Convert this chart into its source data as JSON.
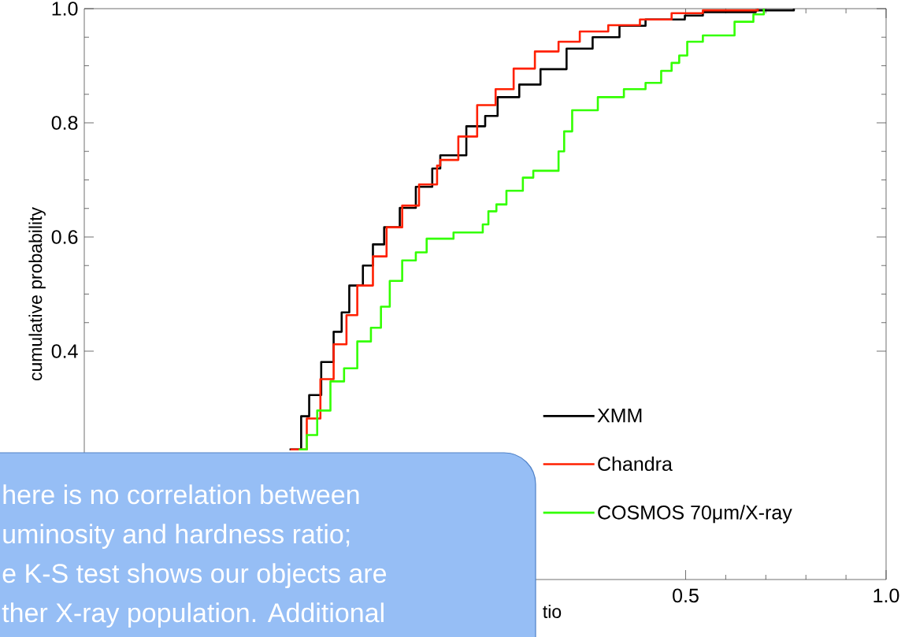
{
  "chart_data": {
    "type": "step",
    "xlabel": "tio",
    "ylabel": "cumulative probability",
    "xlim": [
      -1,
      1
    ],
    "ylim": [
      0,
      1
    ],
    "xticks": [
      {
        "value": 0.5,
        "label": "0.5"
      },
      {
        "value": 1,
        "label": "1.0"
      }
    ],
    "yticks": [
      {
        "value": 0.4,
        "label": "0.4"
      },
      {
        "value": 0.6,
        "label": "0.6"
      },
      {
        "value": 0.8,
        "label": "0.8"
      },
      {
        "value": 1,
        "label": "1.0"
      }
    ],
    "legend": "bottom right",
    "grid": false,
    "line_style": "solid",
    "marker": "none",
    "series": [
      {
        "name": "XMM",
        "color": "#000000",
        "x": [
          -0.488,
          -0.459,
          -0.439,
          -0.409,
          -0.378,
          -0.358,
          -0.339,
          -0.305,
          -0.28,
          -0.252,
          -0.213,
          -0.173,
          -0.132,
          -0.112,
          -0.047,
          0.0,
          0.031,
          0.085,
          0.138,
          0.203,
          0.268,
          0.335,
          0.4,
          0.498,
          0.543,
          0.675,
          0.77
        ],
        "values": [
          0.228,
          0.286,
          0.323,
          0.381,
          0.434,
          0.468,
          0.515,
          0.55,
          0.587,
          0.617,
          0.651,
          0.688,
          0.72,
          0.743,
          0.794,
          0.812,
          0.845,
          0.867,
          0.894,
          0.93,
          0.95,
          0.97,
          0.981,
          0.988,
          0.994,
          0.997,
          1.0
        ]
      },
      {
        "name": "Chandra",
        "color": "#ff2000",
        "x": [
          -0.486,
          -0.445,
          -0.411,
          -0.378,
          -0.346,
          -0.319,
          -0.28,
          -0.246,
          -0.207,
          -0.165,
          -0.12,
          -0.112,
          -0.067,
          -0.02,
          0.026,
          0.071,
          0.124,
          0.183,
          0.236,
          0.307,
          0.386,
          0.465,
          0.543,
          0.68
        ],
        "values": [
          0.228,
          0.282,
          0.351,
          0.412,
          0.463,
          0.515,
          0.566,
          0.617,
          0.655,
          0.692,
          0.725,
          0.735,
          0.776,
          0.831,
          0.859,
          0.895,
          0.925,
          0.942,
          0.96,
          0.971,
          0.981,
          0.992,
          0.997,
          1.0
        ]
      },
      {
        "name": "COSMOS 70μm/X-ray",
        "color": "#33ff00",
        "x": [
          -0.465,
          -0.445,
          -0.419,
          -0.386,
          -0.352,
          -0.319,
          -0.285,
          -0.26,
          -0.238,
          -0.207,
          -0.173,
          -0.146,
          -0.079,
          -0.006,
          0.008,
          0.028,
          0.053,
          0.094,
          0.12,
          0.183,
          0.197,
          0.217,
          0.281,
          0.346,
          0.4,
          0.439,
          0.465,
          0.484,
          0.504,
          0.543,
          0.622,
          0.669,
          0.695
        ],
        "values": [
          0.228,
          0.253,
          0.296,
          0.347,
          0.37,
          0.417,
          0.441,
          0.478,
          0.523,
          0.559,
          0.573,
          0.597,
          0.608,
          0.622,
          0.645,
          0.657,
          0.681,
          0.704,
          0.716,
          0.75,
          0.785,
          0.822,
          0.845,
          0.859,
          0.87,
          0.891,
          0.905,
          0.918,
          0.942,
          0.953,
          0.977,
          0.99,
          1.0
        ]
      }
    ],
    "annotations": [
      "here is no correlation between",
      "uminosity and hardness ratio;",
      "e K-S test shows our objects are",
      "ther X-ray population. Additional"
    ]
  }
}
